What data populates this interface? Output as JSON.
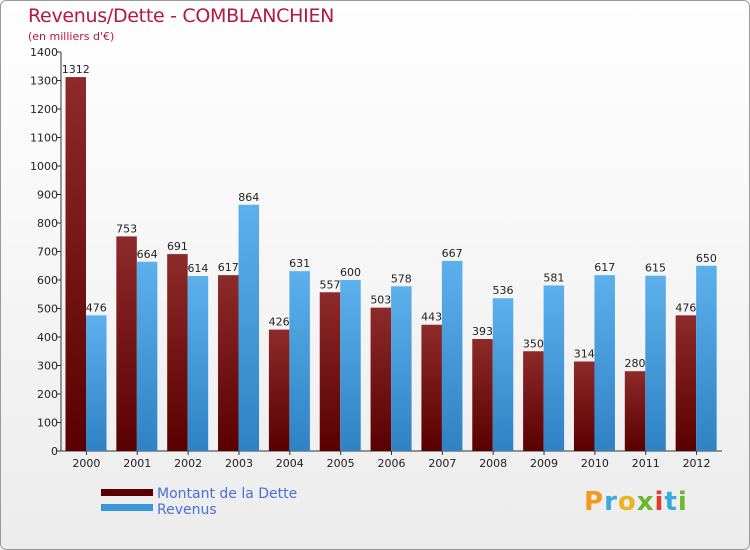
{
  "header": {
    "title": "Revenus/Dette - COMBLANCHIEN",
    "subtitle": "(en milliers d'€)"
  },
  "logo": {
    "text": "Proxiti",
    "letters": [
      "P",
      "r",
      "o",
      "x",
      "i",
      "t",
      "i"
    ],
    "colors": [
      "#f29a1e",
      "#3aa9e0",
      "#e8b51a",
      "#6ab82c",
      "#e23b2e",
      "#3aa9e0",
      "#6ab82c"
    ]
  },
  "colors": {
    "dette": "#7a1515",
    "revenus": "#3a95d9",
    "title": "#b3193c",
    "legend_text": "#4a6fd8"
  },
  "chart_data": {
    "type": "bar",
    "title": "Revenus/Dette - COMBLANCHIEN",
    "subtitle": "(en milliers d'€)",
    "categories": [
      "2000",
      "2001",
      "2002",
      "2003",
      "2004",
      "2005",
      "2006",
      "2007",
      "2008",
      "2009",
      "2010",
      "2011",
      "2012"
    ],
    "series": [
      {
        "name": "Montant de la Dette",
        "values": [
          1312,
          753,
          691,
          617,
          426,
          557,
          503,
          443,
          393,
          350,
          314,
          280,
          476
        ]
      },
      {
        "name": "Revenus",
        "values": [
          476,
          664,
          614,
          864,
          631,
          600,
          578,
          667,
          536,
          581,
          617,
          615,
          650
        ]
      }
    ],
    "ylim": [
      0,
      1400
    ],
    "yticks": [
      0,
      100,
      200,
      300,
      400,
      500,
      600,
      700,
      800,
      900,
      1000,
      1100,
      1200,
      1300,
      1400
    ],
    "grid": false,
    "legend": "bottom-left"
  }
}
